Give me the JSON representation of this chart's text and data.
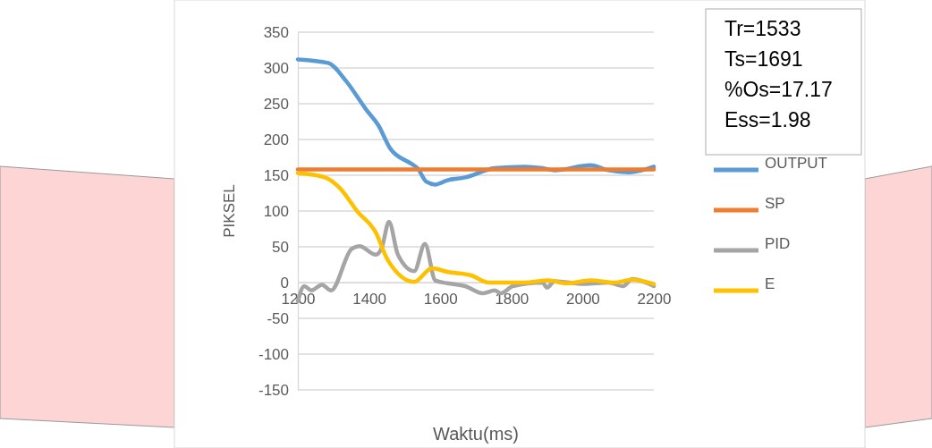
{
  "chart_data": {
    "type": "line",
    "xlabel": "Waktu(ms)",
    "ylabel": "PIKSEL",
    "xlim": [
      1200,
      2200
    ],
    "xticks": [
      1200,
      1400,
      1600,
      1800,
      2000,
      2200
    ],
    "ylim": [
      -150,
      350
    ],
    "yticks": [
      -150,
      -100,
      -50,
      0,
      50,
      100,
      150,
      200,
      250,
      300,
      350
    ],
    "grid": "y",
    "legend": "right",
    "line_style": "solid",
    "annotations": [
      "Tr=1533",
      "Ts=1691",
      "%Os=17.17",
      "Ess=1.98"
    ],
    "series": [
      {
        "name": "OUTPUT",
        "color": "#5b9bd5",
        "x": [
          1200,
          1285,
          1335,
          1393,
          1426,
          1460,
          1519,
          1536,
          1561,
          1586,
          1620,
          1670,
          1753,
          1837,
          1887,
          1921,
          2022,
          2072,
          2130,
          2200
        ],
        "values": [
          312,
          307,
          282,
          241,
          220,
          187,
          166,
          160,
          141,
          137,
          143,
          147,
          160,
          162,
          160,
          157,
          164,
          157,
          154,
          162
        ]
      },
      {
        "name": "SP",
        "color": "#ed7d31",
        "x": [
          1200,
          2200
        ],
        "values": [
          158,
          158
        ]
      },
      {
        "name": "PID",
        "color": "#a5a5a5",
        "x": [
          1200,
          1218,
          1238,
          1268,
          1293,
          1351,
          1373,
          1419,
          1436,
          1456,
          1481,
          1527,
          1557,
          1586,
          1620,
          1670,
          1720,
          1753,
          1770,
          1804,
          1887,
          1900,
          1921,
          2005,
          2072,
          2114,
          2139,
          2200
        ],
        "values": [
          -26,
          -5,
          -11,
          -3,
          -11,
          47,
          51,
          39,
          49,
          85,
          39,
          16,
          54,
          3,
          -1,
          -5,
          -15,
          -11,
          -15,
          -5,
          0,
          -7,
          2,
          -2,
          0,
          -5,
          5,
          -5
        ]
      },
      {
        "name": "E",
        "color": "#ffc000",
        "x": [
          1200,
          1276,
          1318,
          1368,
          1419,
          1452,
          1527,
          1577,
          1620,
          1687,
          1737,
          1837,
          1904,
          1954,
          2022,
          2089,
          2139,
          2200
        ],
        "values": [
          153,
          147,
          132,
          99,
          70,
          32,
          1,
          20,
          15,
          10,
          0,
          0,
          3,
          -1,
          3,
          0,
          4,
          -2
        ]
      }
    ]
  }
}
